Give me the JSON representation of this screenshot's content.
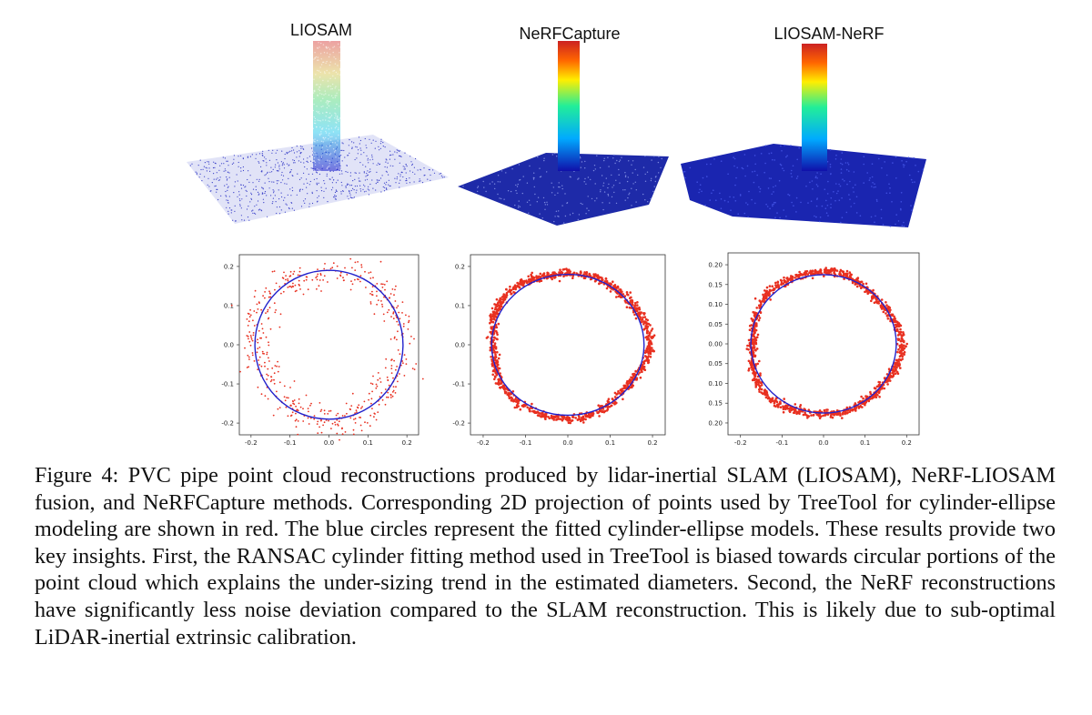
{
  "figure": {
    "panels": [
      {
        "title": "LIOSAM"
      },
      {
        "title": "NeRFCapture"
      },
      {
        "title": "LIOSAM-NeRF"
      }
    ],
    "caption": "Figure 4: PVC pipe point cloud reconstructions produced by lidar-inertial SLAM (LIOSAM), NeRF-LIOSAM fusion, and NeRFCapture methods.  Corresponding 2D projection of points used by TreeTool for cylinder-ellipse modeling are shown in red. The blue circles represent the fitted cylinder-ellipse models. These results provide two key insights. First, the RANSAC cylinder fitting method used in TreeTool is biased towards circular portions of the point cloud which explains the under-sizing trend in the estimated diameters.  Second, the NeRF reconstructions have significantly less noise deviation compared to the SLAM reconstruction. This is likely due to sub-optimal LiDAR-inertial extrinsic calibration."
  },
  "chart_data": [
    {
      "type": "scatter",
      "title": "",
      "xlabel": "",
      "ylabel": "",
      "xlim": [
        -0.23,
        0.23
      ],
      "ylim": [
        -0.23,
        0.23
      ],
      "x_ticks": [
        "-0.2",
        "-0.1",
        "0.0",
        "0.1",
        "0.2"
      ],
      "y_ticks": [
        "0.2",
        "0.1",
        "0.0",
        "-0.1",
        "-0.2"
      ],
      "fitted_circle": {
        "cx": 0.0,
        "cy": 0.0,
        "r": 0.19,
        "color": "#2222cc"
      },
      "points": {
        "color": "#e83020",
        "radius_mean": 0.19,
        "noise_sd": 0.02,
        "count": 500
      }
    },
    {
      "type": "scatter",
      "title": "",
      "xlabel": "",
      "ylabel": "",
      "xlim": [
        -0.23,
        0.23
      ],
      "ylim": [
        -0.23,
        0.23
      ],
      "x_ticks": [
        "-0.2",
        "-0.1",
        "0.0",
        "0.1",
        "0.2"
      ],
      "y_ticks": [
        "0.2",
        "0.1",
        "0.0",
        "-0.1",
        "-0.2"
      ],
      "fitted_circle": {
        "cx": 0.0,
        "cy": 0.0,
        "r": 0.18,
        "color": "#2222cc"
      },
      "points": {
        "color": "#e83020",
        "radius_mean": 0.185,
        "noise_sd": 0.005,
        "count": 1100
      }
    },
    {
      "type": "scatter",
      "title": "",
      "xlabel": "",
      "ylabel": "",
      "xlim": [
        -0.23,
        0.23
      ],
      "ylim": [
        -0.23,
        0.23
      ],
      "x_ticks": [
        "-0.2",
        "-0.1",
        "0.0",
        "0.1",
        "0.2"
      ],
      "y_ticks": [
        "0.20",
        "0.15",
        "0.10",
        "0.05",
        "0.00",
        "0.05",
        "0.10",
        "0.15",
        "0.20"
      ],
      "fitted_circle": {
        "cx": 0.0,
        "cy": 0.0,
        "r": 0.175,
        "color": "#2222cc"
      },
      "points": {
        "color": "#e83020",
        "radius_mean": 0.18,
        "noise_sd": 0.005,
        "count": 1100
      }
    }
  ]
}
